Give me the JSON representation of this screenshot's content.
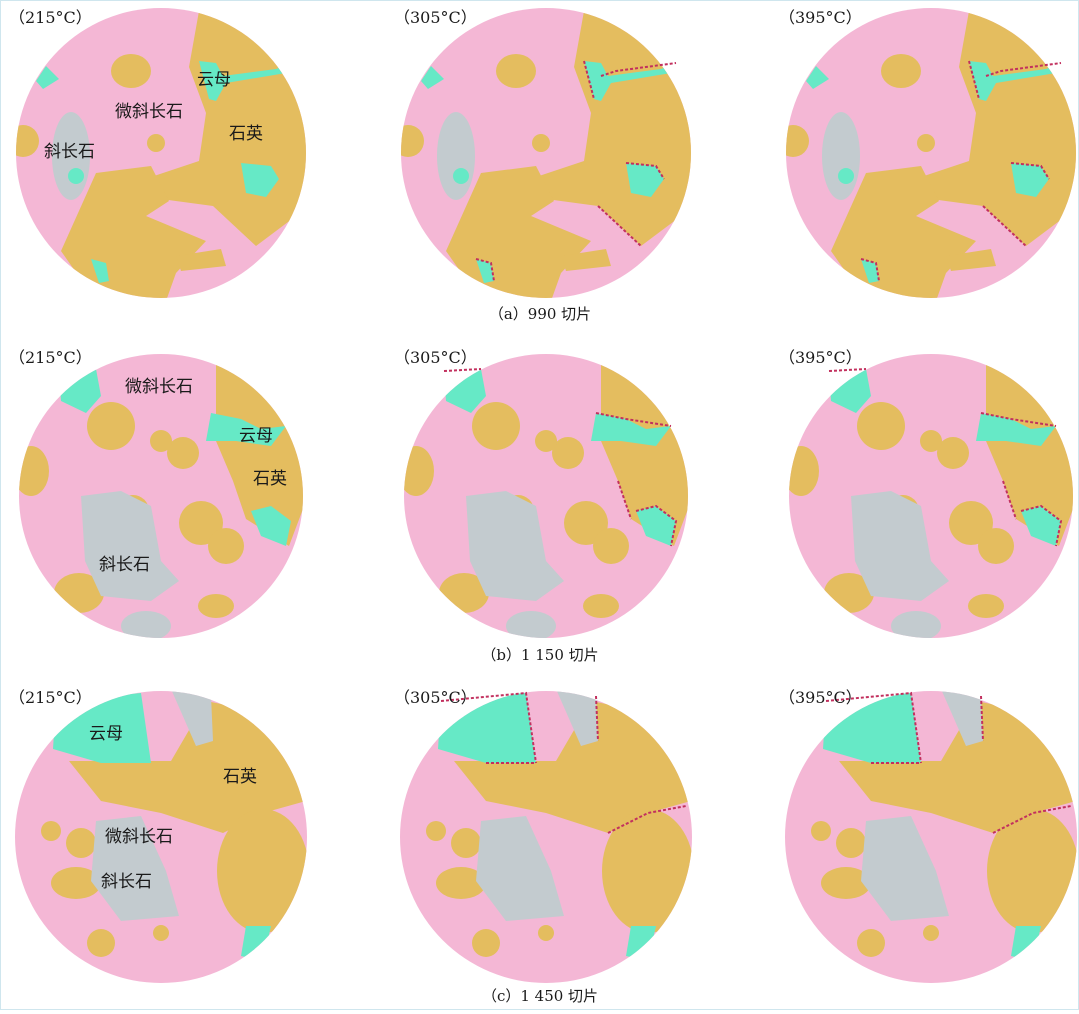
{
  "colors": {
    "microcline": "#f4b7d5",
    "quartz": "#e4bd5f",
    "mica": "#66e9c6",
    "plagioclase": "#c3cbcf",
    "crack": "#c2305e"
  },
  "rows": [
    {
      "caption": "（a）990 切片",
      "temps": [
        "（215°C）",
        "（305°C）",
        "（395°C）"
      ],
      "labels": {
        "mica": "云母",
        "microcline": "微斜长石",
        "quartz": "石英",
        "plagioclase": "斜长石"
      }
    },
    {
      "caption": "（b）1 150 切片",
      "temps": [
        "（215°C）",
        "（305°C）",
        "（395°C）"
      ],
      "labels": {
        "mica": "云母",
        "microcline": "微斜长石",
        "quartz": "石英",
        "plagioclase": "斜长石"
      }
    },
    {
      "caption": "（c）1 450 切片",
      "temps": [
        "（215°C）",
        "（305°C）",
        "（395°C）"
      ],
      "labels": {
        "mica": "云母",
        "microcline": "微斜长石",
        "quartz": "石英",
        "plagioclase": "斜长石"
      }
    }
  ]
}
